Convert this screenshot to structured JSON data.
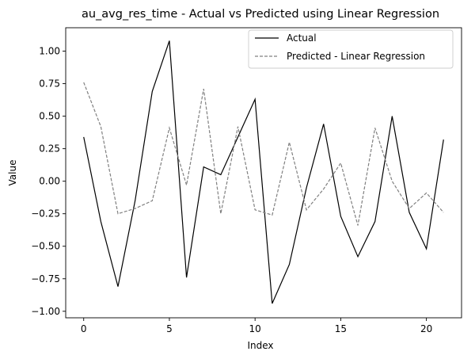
{
  "chart_data": {
    "type": "line",
    "title": "au_avg_res_time - Actual vs Predicted using Linear Regression",
    "xlabel": "Index",
    "ylabel": "Value",
    "xlim": [
      -1.05,
      22.05
    ],
    "ylim": [
      -1.05,
      1.18
    ],
    "x_ticks": [
      0,
      5,
      10,
      15,
      20
    ],
    "y_ticks": [
      -1.0,
      -0.75,
      -0.5,
      -0.25,
      0.0,
      0.25,
      0.5,
      0.75,
      1.0
    ],
    "y_tick_labels": [
      "−1.00",
      "−0.75",
      "−0.50",
      "−0.25",
      "0.00",
      "0.25",
      "0.50",
      "0.75",
      "1.00"
    ],
    "grid": false,
    "legend_position": "top-right",
    "x": [
      0,
      1,
      2,
      3,
      4,
      5,
      6,
      7,
      8,
      9,
      10,
      11,
      12,
      13,
      14,
      15,
      16,
      17,
      18,
      19,
      20,
      21
    ],
    "series": [
      {
        "name": "Actual",
        "color": "#000000",
        "style": "solid",
        "values": [
          0.34,
          -0.31,
          -0.81,
          -0.15,
          0.69,
          1.08,
          -0.74,
          0.11,
          0.05,
          0.34,
          0.63,
          -0.94,
          -0.64,
          -0.05,
          0.44,
          -0.27,
          -0.58,
          -0.31,
          0.5,
          -0.24,
          -0.52,
          0.32
        ]
      },
      {
        "name": "Predicted - Linear Regression",
        "color": "#808080",
        "style": "dashed",
        "values": [
          0.76,
          0.42,
          -0.25,
          -0.21,
          -0.15,
          0.41,
          -0.03,
          0.71,
          -0.25,
          0.42,
          -0.22,
          -0.26,
          0.3,
          -0.22,
          -0.06,
          0.14,
          -0.34,
          0.41,
          0.0,
          -0.21,
          -0.09,
          -0.24
        ]
      }
    ]
  }
}
